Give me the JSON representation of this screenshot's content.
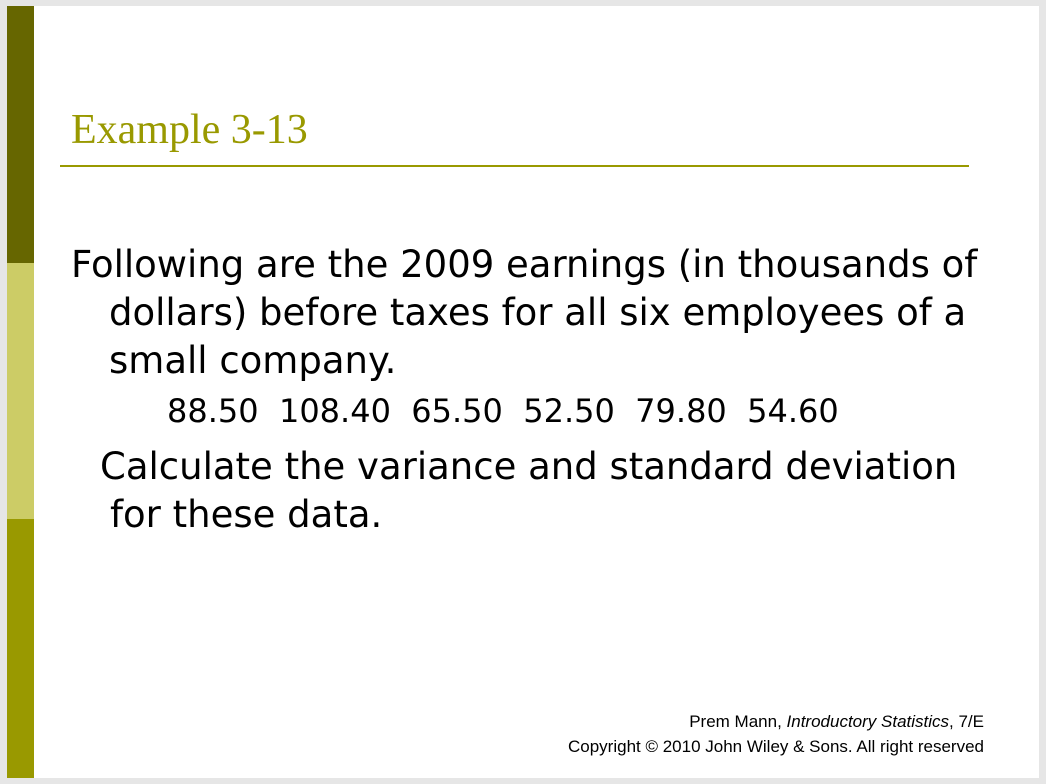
{
  "slide": {
    "title": "Example 3-13",
    "paragraph_1": "Following are the 2009 earnings  (in thousands of dollars) before taxes for all six employees of a small company.",
    "data_values": "88.50  108.40  65.50  52.50  79.80  54.60",
    "paragraph_2": "Calculate the variance and standard deviation for these data."
  },
  "footer": {
    "author": "Prem Mann, ",
    "book_title": "Introductory Statistics",
    "edition": ", 7/E",
    "copyright": "Copyright © 2010 John Wiley & Sons. All right reserved"
  },
  "colors": {
    "accent": "#999900",
    "bar_top": "#666600",
    "bar_mid": "#cccc66",
    "bar_bottom": "#999900"
  }
}
